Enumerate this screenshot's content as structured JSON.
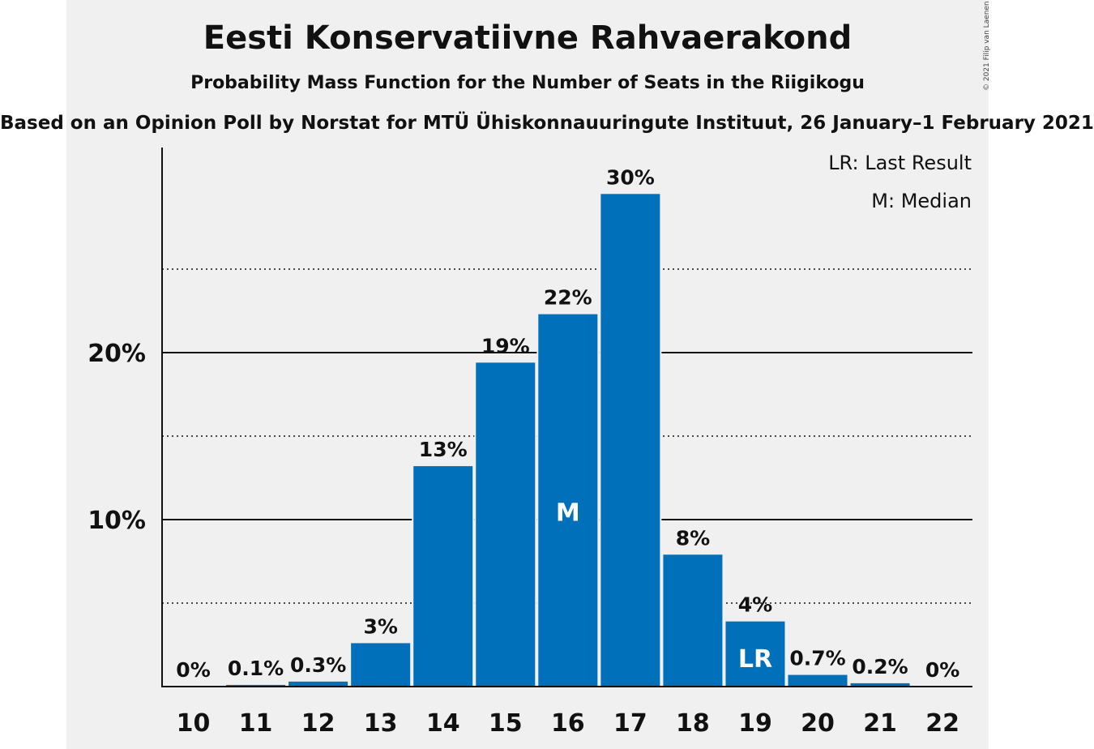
{
  "colors": {
    "bar": "#0070bb",
    "panel": "#f0f0f0",
    "axis": "#111111"
  },
  "chart_data": {
    "type": "bar",
    "title": "Eesti Konservatiivne Rahvaerakond",
    "subtitle": "Probability Mass Function for the Number of Seats in the Riigikogu",
    "source": "Based on an Opinion Poll by Norstat for MTÜ Ühiskonnauuringute Instituut, 26 January–1 February 2021",
    "copyright": "© 2021 Filip van Laenen",
    "categories": [
      "10",
      "11",
      "12",
      "13",
      "14",
      "15",
      "16",
      "17",
      "18",
      "19",
      "20",
      "21",
      "22"
    ],
    "values": [
      0,
      0.1,
      0.3,
      2.6,
      13.2,
      19.4,
      22.3,
      29.5,
      7.9,
      3.9,
      0.7,
      0.2,
      0
    ],
    "value_labels": [
      "0%",
      "0.1%",
      "0.3%",
      "3%",
      "13%",
      "19%",
      "22%",
      "30%",
      "8%",
      "4%",
      "0.7%",
      "0.2%",
      "0%"
    ],
    "ylim": [
      0,
      32
    ],
    "yticks": [
      {
        "value": 10,
        "label": "10%"
      },
      {
        "value": 20,
        "label": "20%"
      }
    ],
    "minor_gridlines": [
      5,
      15,
      25
    ],
    "median_seat": "16",
    "last_result_seat": "19",
    "markers": {
      "median": "M",
      "last_result": "LR"
    },
    "legend": [
      "LR: Last Result",
      "M: Median"
    ],
    "legend_position": "top-right",
    "xlabel": "",
    "ylabel": ""
  }
}
